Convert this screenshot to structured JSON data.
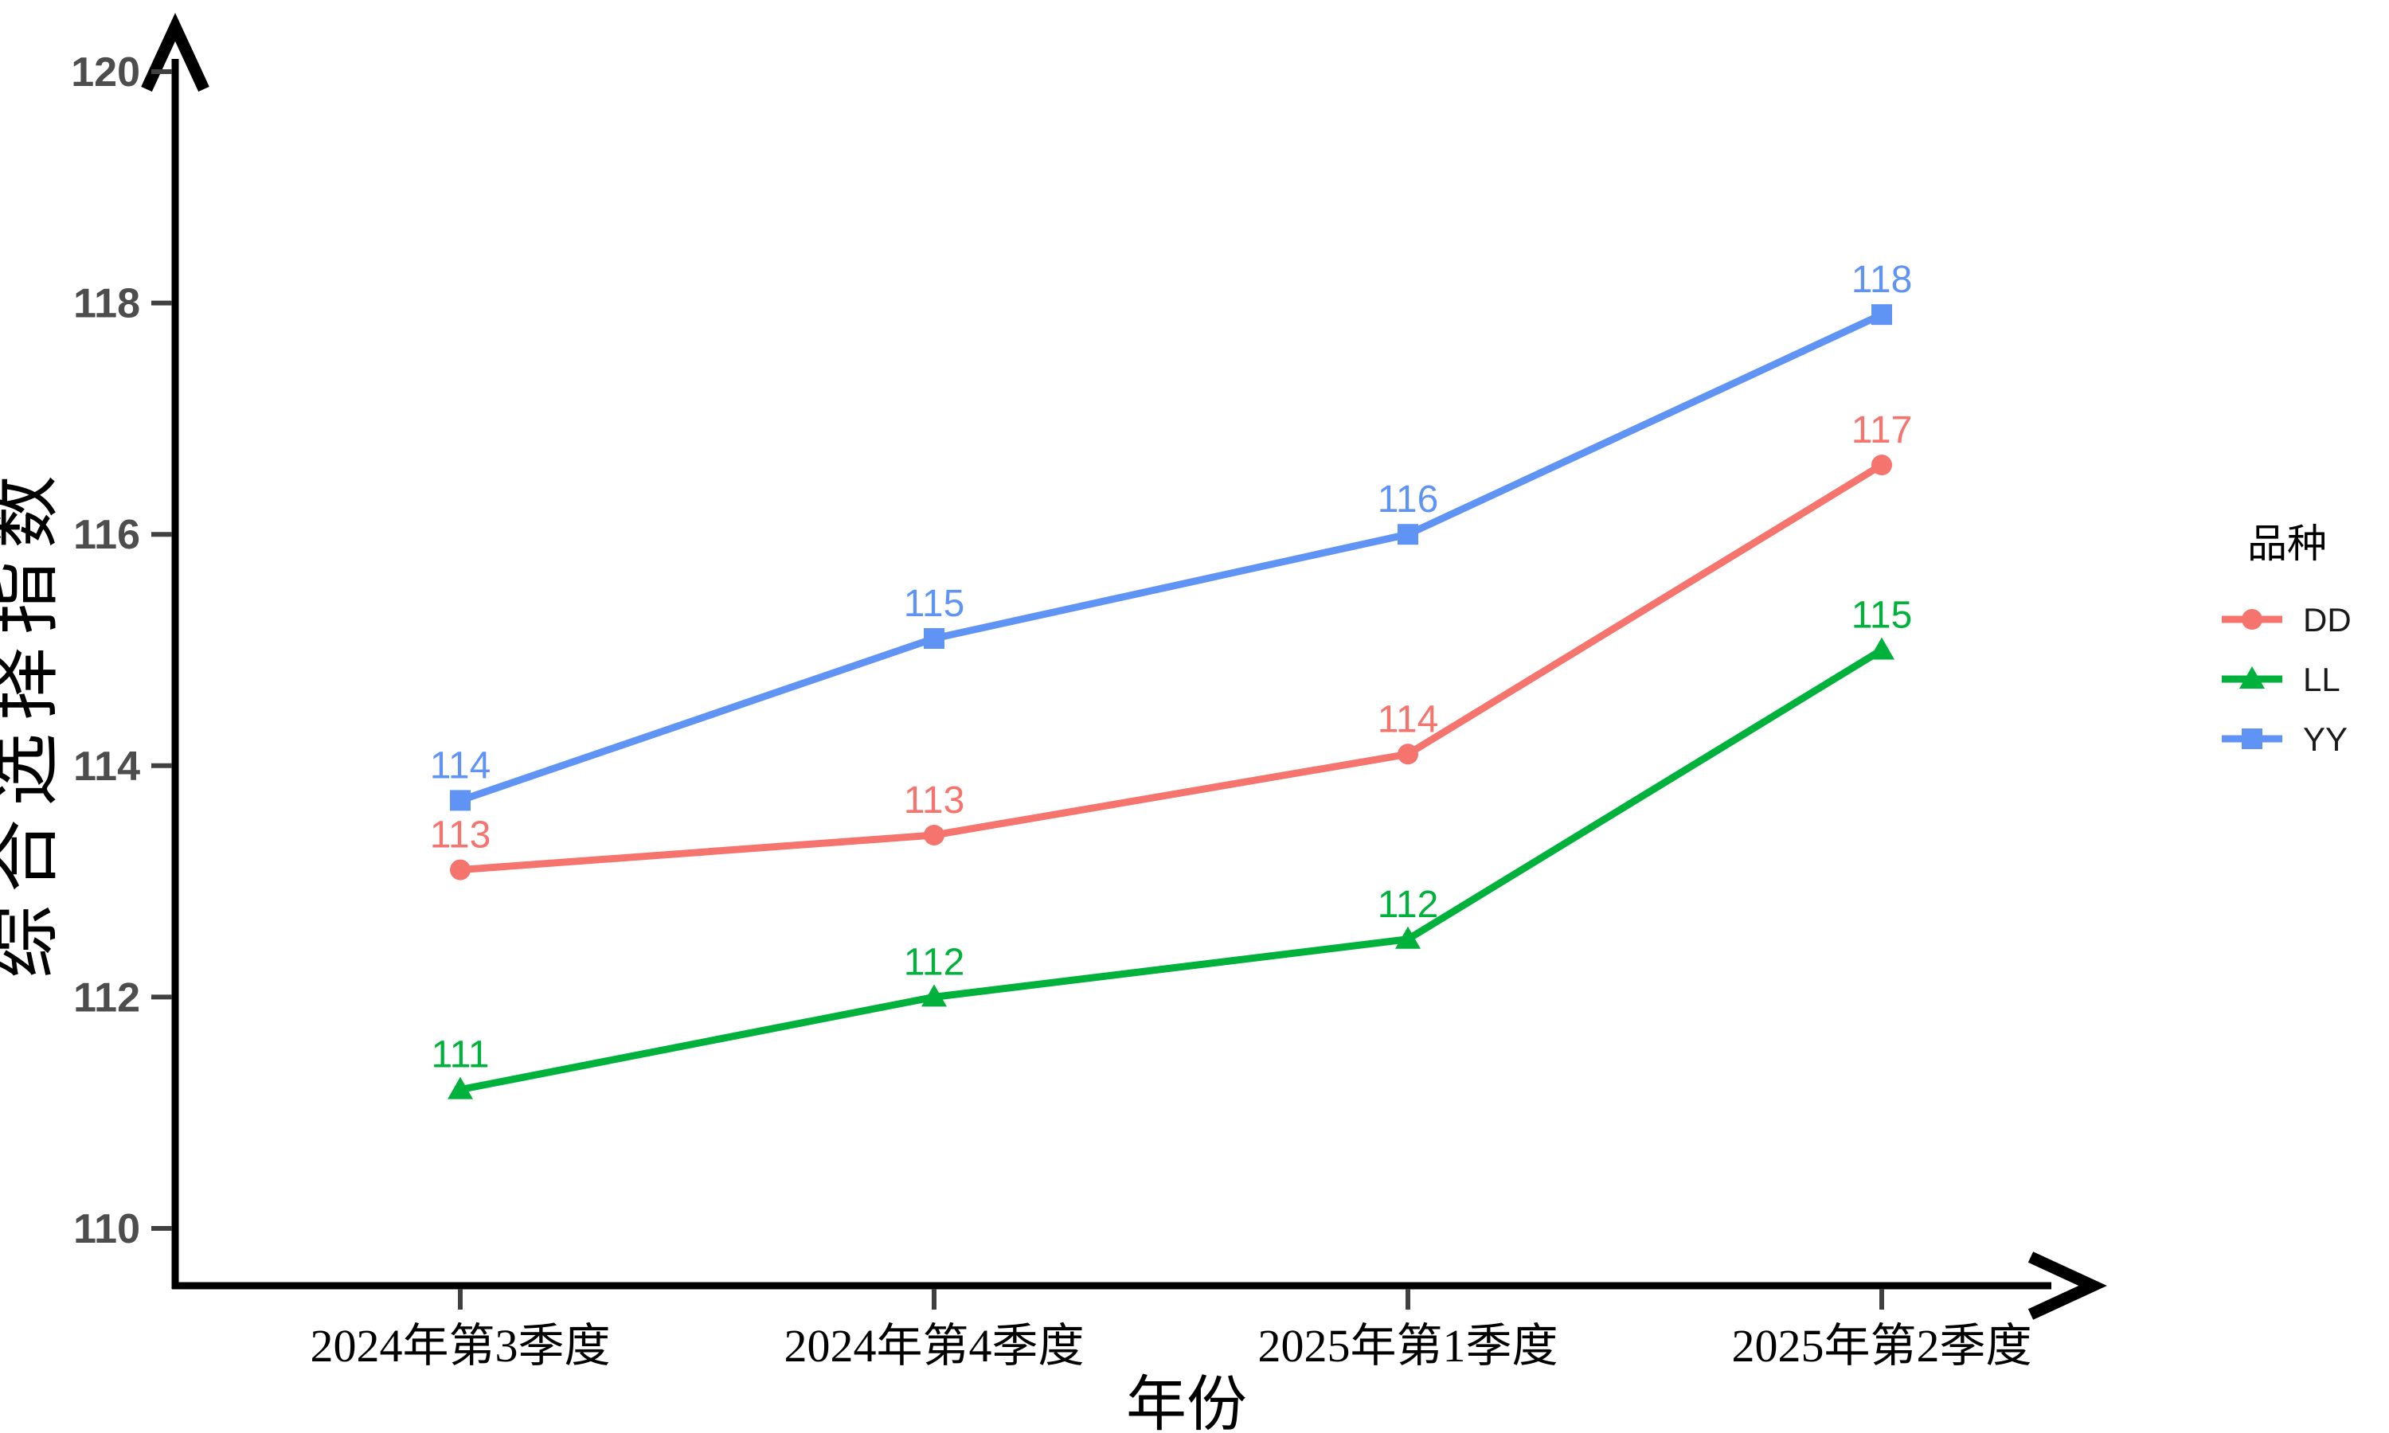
{
  "chart_data": {
    "type": "line",
    "title": "",
    "xlabel": "年份",
    "ylabel": "综合选择指数",
    "categories": [
      "2024年第3季度",
      "2024年第4季度",
      "2025年第1季度",
      "2025年第2季度"
    ],
    "series": [
      {
        "name": "DD",
        "color": "#F5746E",
        "marker": "circle",
        "values": [
          113.1,
          113.4,
          114.1,
          116.6
        ],
        "labels": [
          "113",
          "113",
          "114",
          "117"
        ]
      },
      {
        "name": "LL",
        "color": "#00B23C",
        "marker": "triangle",
        "values": [
          111.2,
          112.0,
          112.5,
          115.0
        ],
        "labels": [
          "111",
          "112",
          "112",
          "115"
        ]
      },
      {
        "name": "YY",
        "color": "#6094F4",
        "marker": "square",
        "values": [
          113.7,
          115.1,
          116.0,
          117.9
        ],
        "labels": [
          "114",
          "115",
          "116",
          "118"
        ]
      }
    ],
    "yticks": [
      110,
      112,
      114,
      116,
      118,
      120
    ],
    "ylim": [
      109.5,
      120.4
    ],
    "grid": false,
    "legend_title": "品种",
    "legend_position": "right",
    "axis_arrows": true
  },
  "style_tokens": {
    "axis_color": "#000000",
    "tick_mark_color": "#404040",
    "y_tick_label_color": "#4d4d4d",
    "x_tick_label_color": "#000000",
    "background": "#ffffff"
  }
}
